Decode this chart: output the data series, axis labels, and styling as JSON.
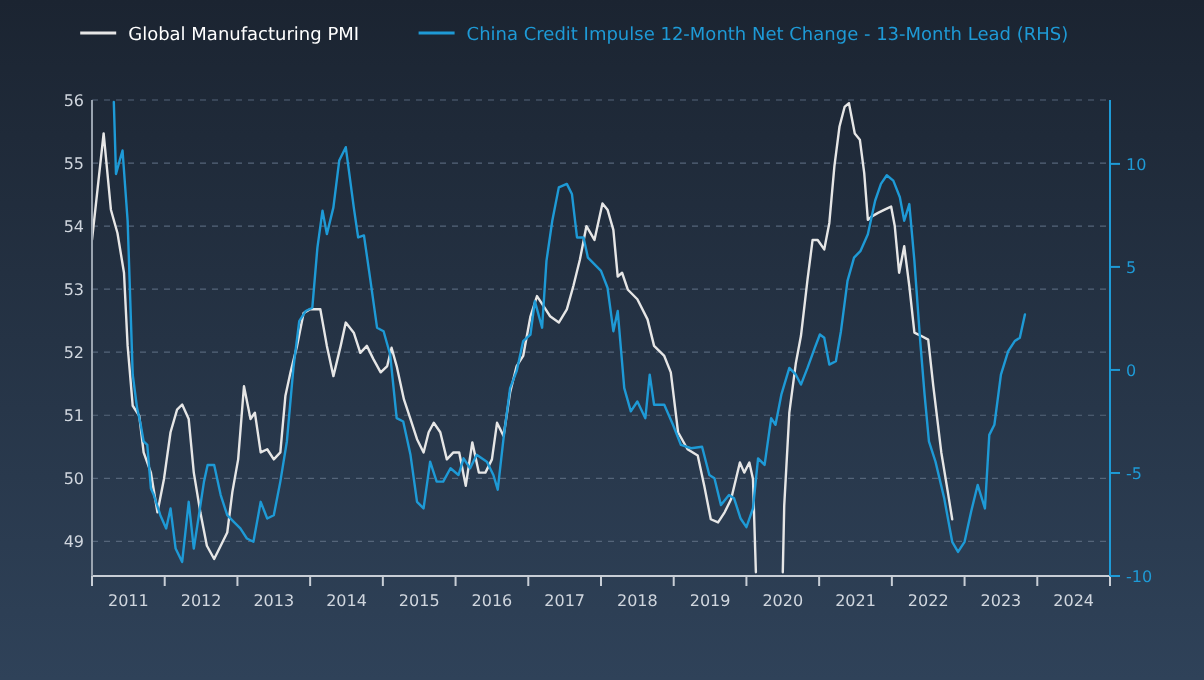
{
  "chart_data": {
    "type": "line",
    "xlim": [
      2011,
      2025
    ],
    "xticks": [
      {
        "value": 2011,
        "label": null
      },
      {
        "value": 2011.5,
        "label": "2011"
      },
      {
        "value": 2012,
        "label": null
      },
      {
        "value": 2012.5,
        "label": "2012"
      },
      {
        "value": 2013,
        "label": null
      },
      {
        "value": 2013.5,
        "label": "2013"
      },
      {
        "value": 2014,
        "label": null
      },
      {
        "value": 2014.5,
        "label": "2014"
      },
      {
        "value": 2015,
        "label": null
      },
      {
        "value": 2015.5,
        "label": "2015"
      },
      {
        "value": 2016,
        "label": null
      },
      {
        "value": 2016.5,
        "label": "2016"
      },
      {
        "value": 2017,
        "label": null
      },
      {
        "value": 2017.5,
        "label": "2017"
      },
      {
        "value": 2018,
        "label": null
      },
      {
        "value": 2018.5,
        "label": "2018"
      },
      {
        "value": 2019,
        "label": null
      },
      {
        "value": 2019.5,
        "label": "2019"
      },
      {
        "value": 2020,
        "label": null
      },
      {
        "value": 2020.5,
        "label": "2020"
      },
      {
        "value": 2021,
        "label": null
      },
      {
        "value": 2021.5,
        "label": "2021"
      },
      {
        "value": 2022,
        "label": null
      },
      {
        "value": 2022.5,
        "label": "2022"
      },
      {
        "value": 2023,
        "label": null
      },
      {
        "value": 2023.5,
        "label": "2023"
      },
      {
        "value": 2024,
        "label": null
      },
      {
        "value": 2024.5,
        "label": "2024"
      },
      {
        "value": 2025,
        "label": null
      }
    ],
    "ylim": [
      48.45,
      56
    ],
    "yticks": [
      49,
      50,
      51,
      52,
      53,
      54,
      55,
      56
    ],
    "y2lim": [
      -10,
      13.1
    ],
    "y2ticks": [
      -10,
      -5,
      0,
      5,
      10
    ],
    "grid": "y",
    "legend": "top",
    "line_style": "solid",
    "series": [
      {
        "name": "Global Manufacturing PMI",
        "color": "#e6e6e6",
        "x": [
          2011.0,
          2011.07,
          2011.16,
          2011.26,
          2011.35,
          2011.44,
          2011.49,
          2011.56,
          2011.65,
          2011.71,
          2011.81,
          2011.9,
          2011.99,
          2012.08,
          2012.17,
          2012.24,
          2012.33,
          2012.4,
          2012.49,
          2012.58,
          2012.68,
          2012.77,
          2012.86,
          2012.93,
          2013.01,
          2013.09,
          2013.18,
          2013.24,
          2013.32,
          2013.41,
          2013.5,
          2013.59,
          2013.66,
          2013.73,
          2013.82,
          2013.91,
          2014.0,
          2014.14,
          2014.23,
          2014.32,
          2014.42,
          2014.49,
          2014.6,
          2014.69,
          2014.78,
          2014.87,
          2014.97,
          2015.06,
          2015.12,
          2015.19,
          2015.29,
          2015.38,
          2015.47,
          2015.56,
          2015.63,
          2015.7,
          2015.79,
          2015.88,
          2015.97,
          2016.05,
          2016.14,
          2016.23,
          2016.32,
          2016.41,
          2016.5,
          2016.57,
          2016.66,
          2016.75,
          2016.84,
          2016.93,
          2017.03,
          2017.12,
          2017.21,
          2017.3,
          2017.42,
          2017.53,
          2017.62,
          2017.71,
          2017.8,
          2017.91,
          2018.02,
          2018.09,
          2018.17,
          2018.23,
          2018.29,
          2018.37,
          2018.5,
          2018.64,
          2018.73,
          2018.87,
          2018.96,
          2019.06,
          2019.19,
          2019.33,
          2019.42,
          2019.51,
          2019.61,
          2019.7,
          2019.79,
          2019.91,
          2019.97,
          2020.04,
          2020.09,
          2020.13,
          2020.3,
          2020.5,
          2020.52,
          2020.59,
          2020.68,
          2020.75,
          2020.84,
          2020.91,
          2020.98,
          2021.07,
          2021.14,
          2021.21,
          2021.28,
          2021.35,
          2021.41,
          2021.49,
          2021.56,
          2021.62,
          2021.67,
          2021.72,
          2021.81,
          2021.9,
          2021.99,
          2022.04,
          2022.1,
          2022.17,
          2022.24,
          2022.31,
          2022.4,
          2022.5,
          2022.57,
          2022.68,
          2022.77,
          2022.83
        ],
        "values": [
          53.78,
          54.52,
          55.47,
          54.26,
          53.89,
          53.26,
          52.1,
          51.15,
          50.99,
          50.41,
          50.09,
          49.46,
          49.99,
          50.73,
          51.09,
          51.17,
          50.94,
          50.09,
          49.46,
          48.93,
          48.72,
          48.93,
          49.14,
          49.78,
          50.3,
          51.46,
          50.94,
          51.04,
          50.41,
          50.46,
          50.3,
          50.41,
          51.31,
          51.68,
          52.1,
          52.62,
          52.68,
          52.68,
          52.1,
          51.62,
          52.1,
          52.47,
          52.31,
          51.99,
          52.1,
          51.89,
          51.68,
          51.78,
          52.07,
          51.78,
          51.25,
          50.94,
          50.62,
          50.41,
          50.73,
          50.88,
          50.73,
          50.3,
          50.41,
          50.41,
          49.88,
          50.57,
          50.09,
          50.09,
          50.3,
          50.88,
          50.67,
          51.36,
          51.78,
          51.94,
          52.57,
          52.89,
          52.73,
          52.57,
          52.47,
          52.68,
          53.05,
          53.47,
          54.0,
          53.78,
          54.36,
          54.26,
          53.94,
          53.2,
          53.26,
          52.99,
          52.84,
          52.52,
          52.1,
          51.94,
          51.68,
          50.73,
          50.46,
          50.36,
          49.88,
          49.35,
          49.3,
          49.46,
          49.67,
          50.25,
          50.09,
          50.25,
          49.99,
          48.51,
          null,
          48.51,
          49.57,
          51.04,
          51.83,
          52.26,
          53.15,
          53.78,
          53.78,
          53.63,
          54.05,
          54.95,
          55.58,
          55.89,
          55.95,
          55.47,
          55.37,
          54.84,
          54.1,
          54.15,
          54.21,
          54.26,
          54.31,
          54.0,
          53.26,
          53.68,
          53.05,
          52.31,
          52.26,
          52.2,
          51.46,
          50.41,
          49.78,
          49.35
        ]
      },
      {
        "name": "China Credit Impulse 12-Month Net Change - 13-Month Lead (RHS)",
        "color": "#1e9ad6",
        "axis": "y2",
        "x": [
          2011.3,
          2011.33,
          2011.38,
          2011.42,
          2011.49,
          2011.56,
          2011.62,
          2011.67,
          2011.71,
          2011.76,
          2011.81,
          2011.85,
          2011.94,
          2012.02,
          2012.08,
          2012.15,
          2012.24,
          2012.33,
          2012.4,
          2012.47,
          2012.54,
          2012.59,
          2012.68,
          2012.77,
          2012.86,
          2012.95,
          2013.04,
          2013.13,
          2013.22,
          2013.32,
          2013.41,
          2013.5,
          2013.59,
          2013.68,
          2013.77,
          2013.85,
          2013.94,
          2014.03,
          2014.1,
          2014.17,
          2014.23,
          2014.32,
          2014.4,
          2014.49,
          2014.6,
          2014.66,
          2014.74,
          2014.83,
          2014.92,
          2015.01,
          2015.1,
          2015.19,
          2015.28,
          2015.38,
          2015.47,
          2015.56,
          2015.65,
          2015.74,
          2015.83,
          2015.93,
          2016.04,
          2016.11,
          2016.2,
          2016.29,
          2016.43,
          2016.52,
          2016.58,
          2016.66,
          2016.75,
          2016.84,
          2016.93,
          2017.03,
          2017.09,
          2017.19,
          2017.25,
          2017.33,
          2017.42,
          2017.53,
          2017.6,
          2017.67,
          2017.76,
          2017.82,
          2018.0,
          2018.09,
          2018.17,
          2018.23,
          2018.32,
          2018.41,
          2018.5,
          2018.61,
          2018.67,
          2018.73,
          2018.87,
          2018.99,
          2019.1,
          2019.24,
          2019.39,
          2019.49,
          2019.56,
          2019.65,
          2019.76,
          2019.83,
          2019.92,
          2020.0,
          2020.09,
          2020.16,
          2020.25,
          2020.34,
          2020.4,
          2020.48,
          2020.59,
          2020.68,
          2020.75,
          2020.84,
          2020.94,
          2021.01,
          2021.07,
          2021.14,
          2021.23,
          2021.3,
          2021.39,
          2021.48,
          2021.57,
          2021.67,
          2021.77,
          2021.85,
          2021.93,
          2022.02,
          2022.11,
          2022.17,
          2022.24,
          2022.31,
          2022.39,
          2022.45,
          2022.51,
          2022.6,
          2022.72,
          2022.83,
          2022.91,
          2023.0,
          2023.09,
          2023.18,
          2023.28,
          2023.34,
          2023.41,
          2023.5,
          2023.6,
          2023.69,
          2023.76,
          2023.83
        ],
        "values": [
          13.0,
          9.51,
          10.16,
          10.65,
          7.24,
          -0.23,
          -1.85,
          -2.66,
          -3.47,
          -3.64,
          -5.75,
          -6.07,
          -7.05,
          -7.69,
          -6.72,
          -8.67,
          -9.32,
          -6.4,
          -8.67,
          -7.05,
          -5.42,
          -4.61,
          -4.61,
          -6.07,
          -7.05,
          -7.37,
          -7.69,
          -8.18,
          -8.34,
          -6.4,
          -7.21,
          -7.05,
          -5.42,
          -3.47,
          0.1,
          2.37,
          2.86,
          3.02,
          5.94,
          7.73,
          6.59,
          7.89,
          10.16,
          10.81,
          7.89,
          6.43,
          6.53,
          4.32,
          2.05,
          1.88,
          0.75,
          -2.34,
          -2.5,
          -4.12,
          -6.4,
          -6.72,
          -4.45,
          -5.42,
          -5.42,
          -4.77,
          -5.1,
          -4.29,
          -4.77,
          -4.12,
          -4.45,
          -5.1,
          -5.81,
          -3.31,
          -0.88,
          -0.06,
          1.4,
          1.72,
          3.34,
          2.05,
          5.29,
          7.24,
          8.86,
          9.03,
          8.54,
          6.43,
          6.43,
          5.45,
          4.81,
          3.99,
          1.88,
          2.86,
          -0.88,
          -2.01,
          -1.53,
          -2.34,
          -0.23,
          -1.69,
          -1.69,
          -2.66,
          -3.64,
          -3.8,
          -3.73,
          -5.1,
          -5.26,
          -6.56,
          -6.07,
          -6.23,
          -7.21,
          -7.63,
          -6.72,
          -4.29,
          -4.61,
          -2.34,
          -2.66,
          -1.2,
          0.1,
          -0.23,
          -0.71,
          0.1,
          1.07,
          1.72,
          1.56,
          0.26,
          0.42,
          1.88,
          4.32,
          5.45,
          5.78,
          6.59,
          8.21,
          9.03,
          9.45,
          9.19,
          8.38,
          7.24,
          8.05,
          5.29,
          1.4,
          -1.2,
          -3.47,
          -4.45,
          -6.23,
          -8.34,
          -8.83,
          -8.34,
          -6.88,
          -5.58,
          -6.72,
          -3.15,
          -2.66,
          -0.23,
          0.91,
          1.4,
          1.56,
          2.69
        ]
      }
    ]
  }
}
